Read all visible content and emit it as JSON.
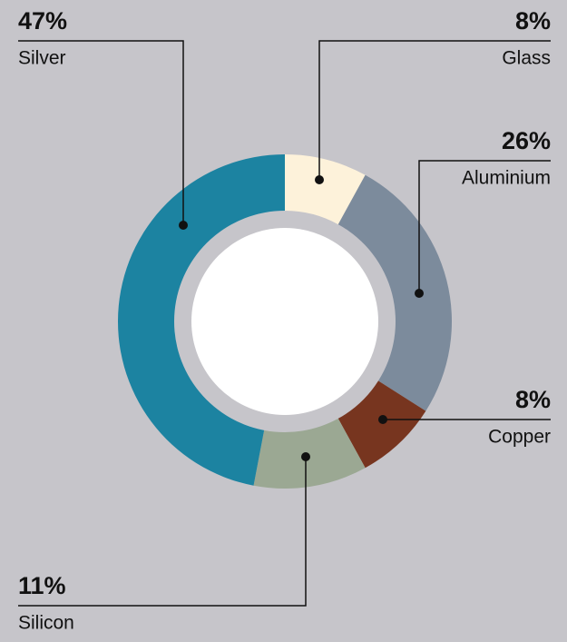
{
  "chart_data": {
    "type": "donut",
    "categories": [
      "Glass",
      "Aluminium",
      "Copper",
      "Silicon",
      "Silver"
    ],
    "values": [
      8,
      26,
      8,
      11,
      47
    ],
    "value_labels": [
      "8%",
      "26%",
      "8%",
      "11%",
      "47%"
    ],
    "colors": [
      "#fdf2da",
      "#7c8b9c",
      "#77351f",
      "#9ba893",
      "#1c83a1"
    ]
  }
}
